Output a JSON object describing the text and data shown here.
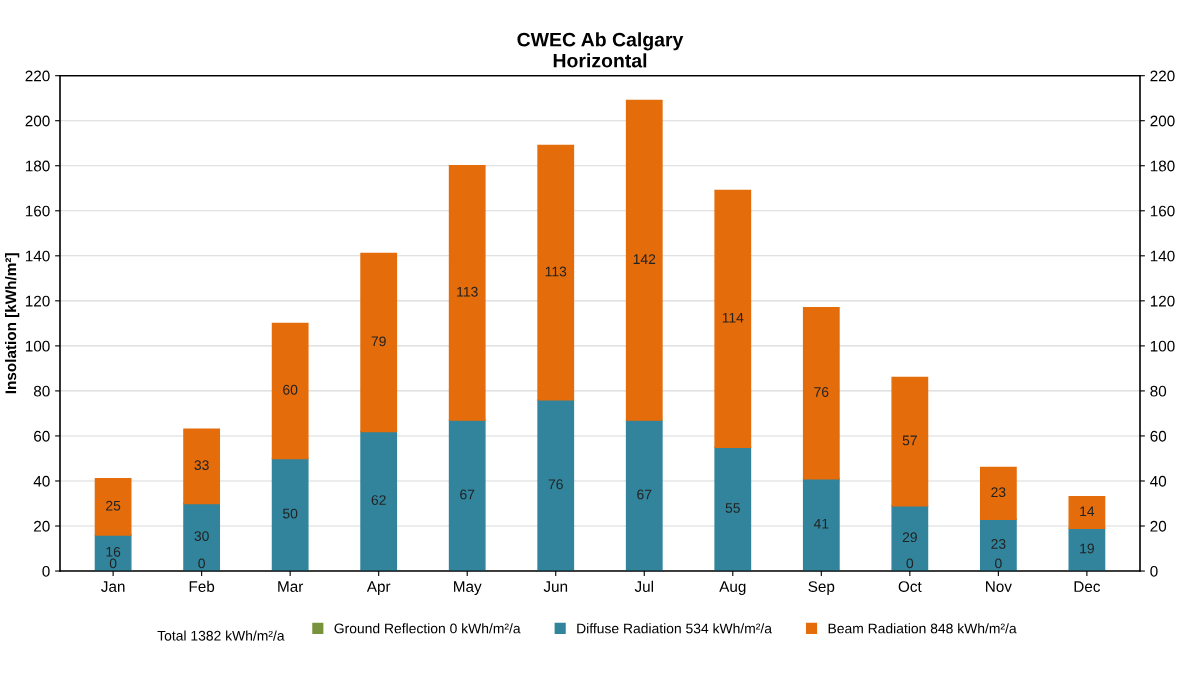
{
  "chart_data": {
    "type": "bar",
    "title": "CWEC Ab Calgary\nHorizontal",
    "ylabel": "Insolation [kWh/m²]",
    "stacked": true,
    "categories": [
      "Jan",
      "Feb",
      "Mar",
      "Apr",
      "May",
      "Jun",
      "Jul",
      "Aug",
      "Sep",
      "Oct",
      "Nov",
      "Dec"
    ],
    "series": [
      {
        "name": "Ground Reflection 0 kWh/m²/a",
        "color": "#77933c",
        "values": [
          0,
          0,
          0,
          0,
          0,
          0,
          0,
          0,
          0,
          0,
          0,
          0
        ],
        "value_labels": [
          "0",
          "0",
          null,
          null,
          null,
          null,
          null,
          null,
          null,
          "0",
          "0",
          null
        ]
      },
      {
        "name": "Diffuse Radiation 534 kWh/m²/a",
        "color": "#31849b",
        "values": [
          16,
          30,
          50,
          62,
          67,
          76,
          67,
          55,
          41,
          29,
          23,
          19
        ],
        "value_labels": [
          "16",
          "30",
          "50",
          "62",
          "67",
          "76",
          "67",
          "55",
          "41",
          "29",
          "23",
          "19"
        ]
      },
      {
        "name": "Beam Radiation 848 kWh/m²/a",
        "color": "#e46c0a",
        "values": [
          25,
          33,
          60,
          79,
          113,
          113,
          142,
          114,
          76,
          57,
          23,
          14
        ],
        "value_labels": [
          "25",
          "33",
          "60",
          "79",
          "113",
          "113",
          "142",
          "114",
          "76",
          "57",
          "23",
          "14"
        ]
      }
    ],
    "ylim": [
      0,
      220
    ],
    "yticks": [
      0,
      20,
      40,
      60,
      80,
      100,
      120,
      140,
      160,
      180,
      200,
      220
    ],
    "y2lim": [
      0,
      220
    ],
    "y2ticks": [
      0,
      20,
      40,
      60,
      80,
      100,
      120,
      140,
      160,
      180,
      200,
      220
    ],
    "grid": "y",
    "legend": "bottom",
    "annotations": [
      "Total 1382 kWh/m²/a"
    ]
  }
}
